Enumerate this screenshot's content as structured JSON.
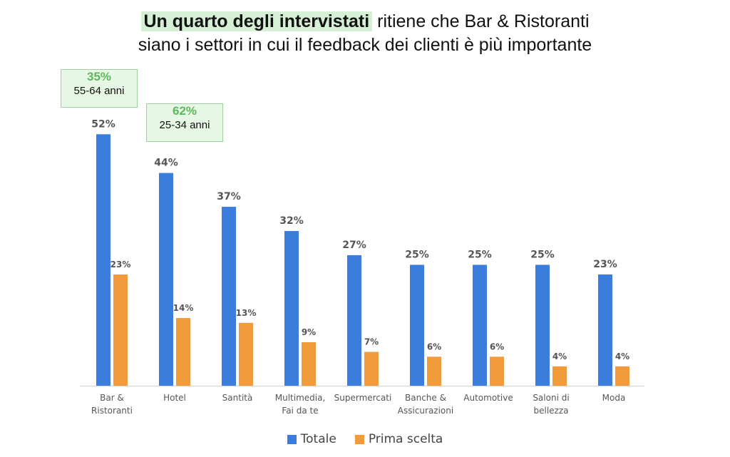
{
  "headline": {
    "highlight": "Un quarto degli intervistati",
    "line1_rest": " ritiene che Bar & Ristoranti",
    "line2": "siano i settori in cui il feedback dei clienti è più importante"
  },
  "callouts": [
    {
      "percent": "35%",
      "age": "55-64 anni"
    },
    {
      "percent": "62%",
      "age": "25-34 anni"
    }
  ],
  "colors": {
    "totale": "#3b7ddd",
    "prima_scelta": "#f29b3c",
    "callout_text": "#5cb85c"
  },
  "chart_data": {
    "type": "bar",
    "categories": [
      [
        "Bar &",
        "Ristoranti"
      ],
      [
        "Hotel"
      ],
      [
        "Santità"
      ],
      [
        "Multimedia,",
        "Fai da te"
      ],
      [
        "Supermercati"
      ],
      [
        "Banche &",
        "Assicurazioni"
      ],
      [
        "Automotive"
      ],
      [
        "Saloni di",
        "bellezza"
      ],
      [
        "Moda"
      ]
    ],
    "series": [
      {
        "name": "Totale",
        "values": [
          52,
          44,
          37,
          32,
          27,
          25,
          25,
          25,
          23
        ]
      },
      {
        "name": "Prima scelta",
        "values": [
          23,
          14,
          13,
          9,
          7,
          6,
          6,
          4,
          4
        ]
      }
    ],
    "ylim": [
      0,
      55
    ],
    "value_suffix": "%",
    "legend_position": "bottom",
    "grid": false
  }
}
